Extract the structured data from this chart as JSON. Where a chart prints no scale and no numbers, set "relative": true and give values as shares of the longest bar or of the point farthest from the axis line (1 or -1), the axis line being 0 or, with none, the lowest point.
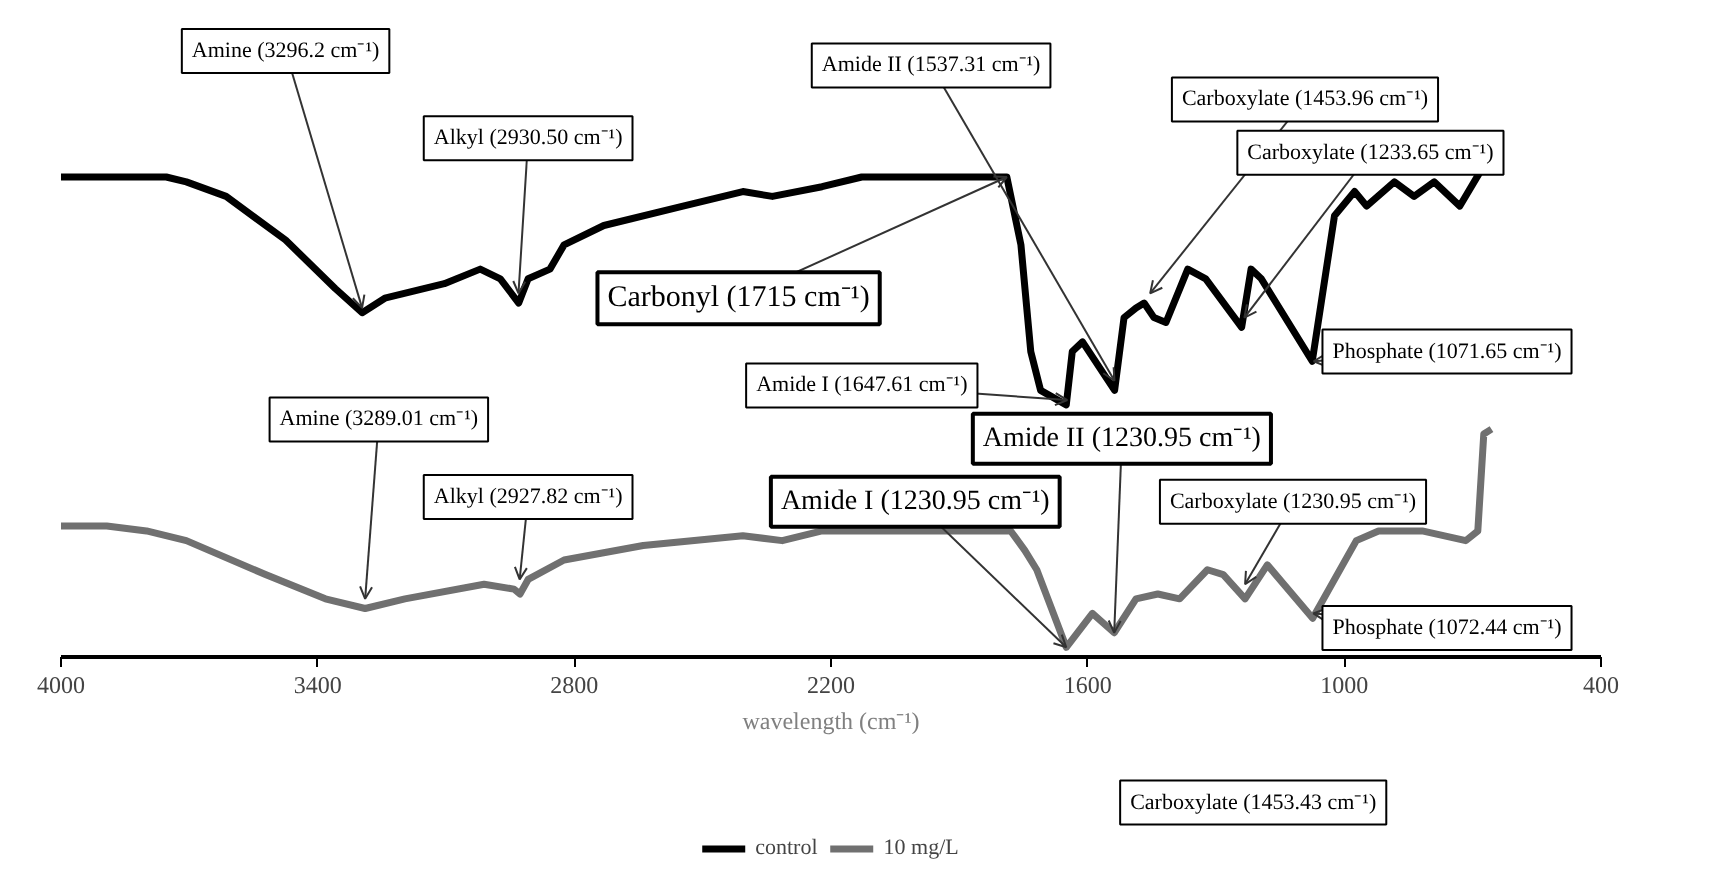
{
  "chart_data": {
    "type": "line",
    "relative": true,
    "xlabel": "wavelength (cm⁻¹)",
    "xlim": [
      4000,
      400
    ],
    "xticks": [
      4000,
      3400,
      2800,
      2200,
      1600,
      1000,
      400
    ],
    "grid": false,
    "legend": "bottom",
    "marker": "none",
    "line_style": "solid",
    "series": [
      {
        "name": "control",
        "color": "#000000",
        "x": [
          4000,
          3893,
          3754,
          3707,
          3614,
          3475,
          3359,
          3296,
          3243,
          3104,
          3020,
          2973,
          2930,
          2908,
          2857,
          2824,
          2731,
          2546,
          2406,
          2337,
          2221,
          2128,
          1849,
          1789,
          1756,
          1733,
          1710,
          1650,
          1636,
          1612,
          1537,
          1515,
          1487,
          1468,
          1445,
          1417,
          1366,
          1324,
          1240,
          1218,
          1194,
          1075,
          1023,
          976,
          948,
          883,
          837,
          790,
          730,
          683
        ],
        "values": [
          0.99,
          0.99,
          0.99,
          0.98,
          0.95,
          0.86,
          0.76,
          0.71,
          0.74,
          0.77,
          0.8,
          0.78,
          0.73,
          0.78,
          0.8,
          0.85,
          0.89,
          0.93,
          0.96,
          0.95,
          0.97,
          0.99,
          0.99,
          0.99,
          0.85,
          0.63,
          0.55,
          0.52,
          0.63,
          0.65,
          0.55,
          0.7,
          0.72,
          0.73,
          0.7,
          0.69,
          0.8,
          0.78,
          0.68,
          0.8,
          0.78,
          0.61,
          0.91,
          0.96,
          0.93,
          0.98,
          0.95,
          0.98,
          0.93,
          1.0
        ]
      },
      {
        "name": "10 mg/L",
        "color": "#707070",
        "x": [
          4000,
          3893,
          3800,
          3707,
          3522,
          3382,
          3289,
          3196,
          3011,
          2941,
          2927,
          2908,
          2824,
          2639,
          2406,
          2314,
          2221,
          2128,
          1849,
          1780,
          1747,
          1719,
          1650,
          1589,
          1538,
          1487,
          1436,
          1385,
          1320,
          1283,
          1232,
          1180,
          1074,
          972,
          920,
          818,
          716,
          688,
          674,
          656
        ],
        "values": [
          0.27,
          0.27,
          0.26,
          0.24,
          0.17,
          0.12,
          0.1,
          0.12,
          0.15,
          0.14,
          0.13,
          0.16,
          0.2,
          0.23,
          0.25,
          0.24,
          0.26,
          0.26,
          0.26,
          0.26,
          0.22,
          0.18,
          0.02,
          0.09,
          0.05,
          0.12,
          0.13,
          0.12,
          0.18,
          0.17,
          0.12,
          0.19,
          0.08,
          0.24,
          0.26,
          0.26,
          0.24,
          0.26,
          0.46,
          0.47
        ]
      }
    ],
    "annotations": [
      {
        "text": "Amine (3296.2 cm⁻¹)",
        "x": 3296.2,
        "y": 0.72
      },
      {
        "text": "Alkyl (2930.50 cm⁻¹)",
        "x": 2930.5,
        "y": 0.75
      },
      {
        "text": "Amide II (1537.31 cm⁻¹)",
        "x": 1537.31,
        "y": 0.57
      },
      {
        "text": "Carboxylate (1453.96 cm⁻¹)",
        "x": 1453.96,
        "y": 0.75
      },
      {
        "text": "Carboxylate (1233.65 cm⁻¹)",
        "x": 1233.65,
        "y": 0.7
      },
      {
        "text": "Phosphate (1071.65 cm⁻¹)",
        "x": 1071.65,
        "y": 0.61
      },
      {
        "text": "Carbonyl (1715 cm⁻¹)",
        "x": 1789,
        "y": 0.99
      },
      {
        "text": "Amide I (1647.61 cm⁻¹)",
        "x": 1647.61,
        "y": 0.53
      },
      {
        "text": "Amide II (1230.95 cm⁻¹)",
        "x": 1538,
        "y": 0.05
      },
      {
        "text": "Amide I (1230.95 cm⁻¹)",
        "x": 1650,
        "y": 0.02
      },
      {
        "text": "Carboxylate (1230.95 cm⁻¹)",
        "x": 1232,
        "y": 0.15
      },
      {
        "text": "Phosphate (1072.44 cm⁻¹)",
        "x": 1072.44,
        "y": 0.09
      },
      {
        "text": "Amine (3289.01 cm⁻¹)",
        "x": 3289.01,
        "y": 0.12
      },
      {
        "text": "Alkyl (2927.82 cm⁻¹)",
        "x": 2927.82,
        "y": 0.16
      },
      "Carboxylate (1453.43 cm⁻¹)"
    ]
  }
}
